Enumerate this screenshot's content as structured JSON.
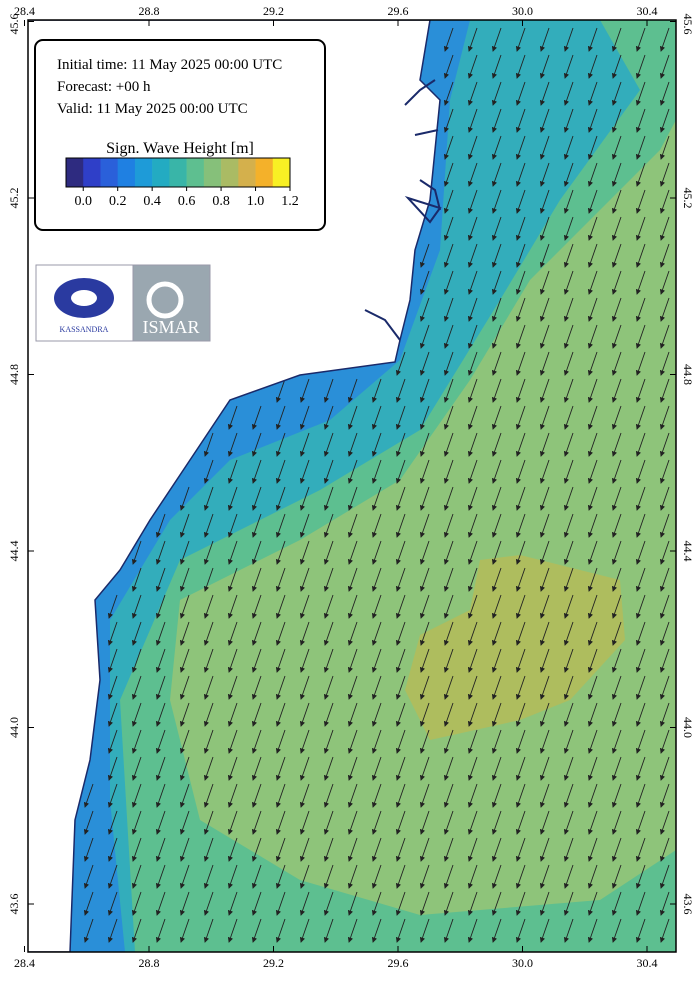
{
  "header": {
    "initial_time": "Initial time: 11 May 2025 00:00 UTC",
    "forecast": "Forecast: +00 h",
    "valid": "Valid: 11 May 2025 00:00 UTC"
  },
  "legend": {
    "title": "Sign. Wave Height [m]",
    "colors": [
      "#2e2b80",
      "#2f3fc8",
      "#2a60da",
      "#1f80e2",
      "#1e9bd8",
      "#23abc2",
      "#39b5a8",
      "#5ebf90",
      "#86c07a",
      "#aabb64",
      "#d4b04c",
      "#f4b12a",
      "#f8f024"
    ],
    "ticks": [
      {
        "value": 0,
        "label": "0.0"
      },
      0.2,
      0.4,
      0.6,
      0.8,
      {
        "value": 1,
        "label": "1.0"
      },
      1.2
    ]
  },
  "logos": {
    "left": "KASSANDRA",
    "right": "ISMAR"
  },
  "axes": {
    "lon_ticks": [
      28.4,
      28.8,
      29.2,
      29.6,
      {
        "value": 30,
        "label": "30.0"
      },
      30.4
    ],
    "lat_ticks": [
      45.6,
      45.2,
      44.8,
      44.4,
      {
        "value": 44,
        "label": "44.0"
      },
      43.6
    ]
  }
}
